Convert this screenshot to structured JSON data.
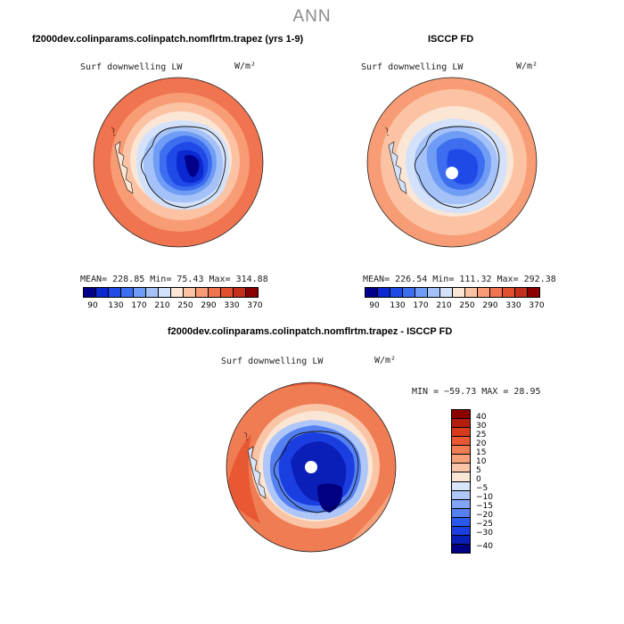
{
  "main_title": "ANN",
  "colors": {
    "abs_scale": [
      "#00008b",
      "#0c28d0",
      "#1f4ae8",
      "#3d6ef0",
      "#6f9cf4",
      "#a4c2f7",
      "#d3e2fa",
      "#fbe6d6",
      "#fbc3a4",
      "#f89c76",
      "#f0744f",
      "#e1502e",
      "#c5301c",
      "#8b0000"
    ],
    "diff_scale": [
      "#000080",
      "#0a1fb8",
      "#1b3ee0",
      "#2a59ed",
      "#5580f2",
      "#82a4f5",
      "#afc6f8",
      "#d8e6fb",
      "#fae6d5",
      "#f9c5a6",
      "#f6a079",
      "#f07c54",
      "#e85933",
      "#d83a1c",
      "#b31e0e",
      "#8b0000"
    ]
  },
  "panels": {
    "model": {
      "case_title": "f2000dev.colinparams.colinpatch.nomflrtm.trapez (yrs 1-9)",
      "field": "Surf downwelling LW",
      "units": "W/m²",
      "stats": "MEAN= 228.85   Min=  75.43   Max= 314.88",
      "colorbar_ticks": [
        "90",
        "130",
        "170",
        "210",
        "250",
        "290",
        "330",
        "370"
      ]
    },
    "obs": {
      "case_title": "ISCCP FD",
      "field": "Surf downwelling LW",
      "units": "W/m²",
      "stats": "MEAN= 226.54   Min= 111.32   Max= 292.38",
      "colorbar_ticks": [
        "90",
        "130",
        "170",
        "210",
        "250",
        "290",
        "330",
        "370"
      ]
    },
    "diff": {
      "case_title": "f2000dev.colinparams.colinpatch.nomflrtm.trapez - ISCCP FD",
      "field": "Surf downwelling LW",
      "units": "W/m²",
      "stats": "MIN = −59.73 MAX =  28.95",
      "colorbar_ticks": [
        "40",
        "30",
        "25",
        "20",
        "15",
        "10",
        "5",
        "0",
        "−5",
        "−10",
        "−15",
        "−20",
        "−25",
        "−30",
        "−40"
      ]
    }
  }
}
